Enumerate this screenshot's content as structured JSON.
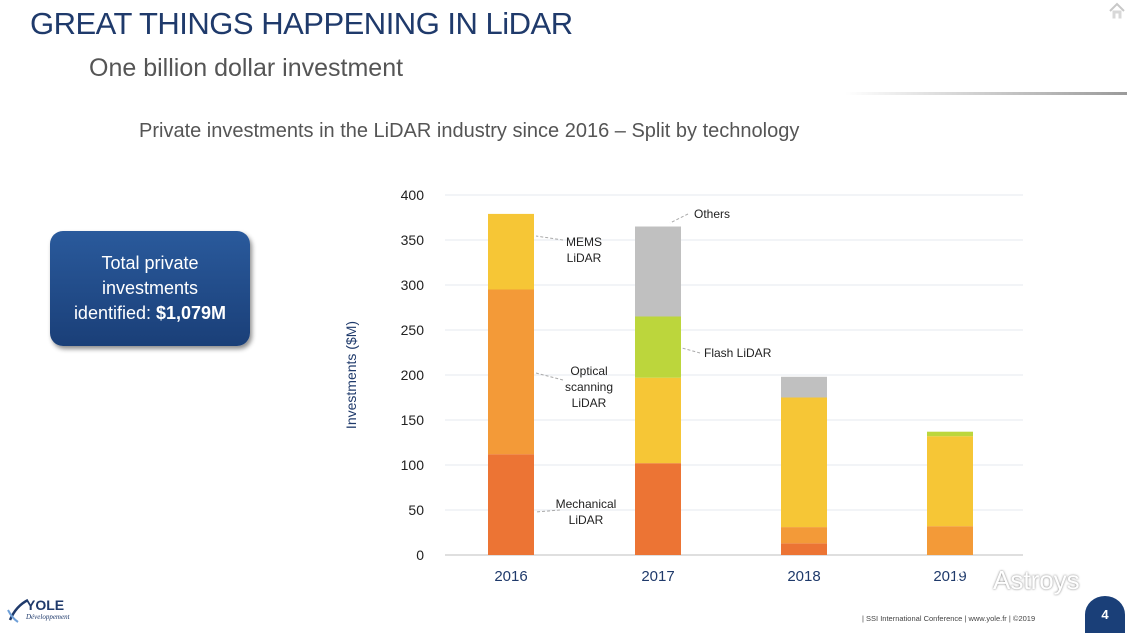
{
  "slide": {
    "title": "GREAT THINGS HAPPENING IN LiDAR",
    "subtitle": "One billion dollar investment",
    "chart_title": "Private investments in the LiDAR industry since 2016 – Split by technology",
    "callout": {
      "line1": "Total private",
      "line2": "investments",
      "line3_prefix": "identified: ",
      "line3_value": "$1,079M"
    },
    "footer": "| SSI International Conference | www.yole.fr | ©2019",
    "page_number": "4",
    "logo": {
      "name": "YOLE",
      "tagline": "Développement"
    },
    "watermark": "Astroys"
  },
  "colors": {
    "title": "#1f3a6b",
    "mechanical": "#ec7434",
    "optical": "#f39a38",
    "mems": "#f6c636",
    "flash": "#bcd63c",
    "others": "#c0c0c0"
  },
  "chart_data": {
    "type": "bar",
    "stacked": true,
    "categories": [
      "2016",
      "2017",
      "2018",
      "2019"
    ],
    "ylabel": "Investments ($M)",
    "ylim": [
      0,
      400
    ],
    "yticks": [
      0,
      50,
      100,
      150,
      200,
      250,
      300,
      350,
      400
    ],
    "grid": true,
    "series": [
      {
        "name": "Mechanical LiDAR",
        "color": "#ec7434",
        "values": [
          112,
          102,
          13,
          0
        ]
      },
      {
        "name": "Optical scanning LiDAR",
        "color": "#f39a38",
        "values": [
          183,
          0,
          18,
          32
        ]
      },
      {
        "name": "MEMS LiDAR",
        "color": "#f6c636",
        "values": [
          84,
          95,
          144,
          100
        ]
      },
      {
        "name": "Flash LiDAR",
        "color": "#bcd63c",
        "values": [
          0,
          68,
          0,
          5
        ]
      },
      {
        "name": "Others",
        "color": "#c0c0c0",
        "values": [
          0,
          100,
          23,
          0
        ]
      }
    ],
    "annotations": [
      {
        "lines": [
          "MEMS",
          "LiDAR"
        ],
        "series": "MEMS LiDAR"
      },
      {
        "lines": [
          "Optical",
          "scanning",
          "LiDAR"
        ],
        "series": "Optical scanning LiDAR"
      },
      {
        "lines": [
          "Mechanical",
          "LiDAR"
        ],
        "series": "Mechanical LiDAR"
      },
      {
        "lines": [
          "Others"
        ],
        "series": "Others"
      },
      {
        "lines": [
          "Flash LiDAR"
        ],
        "series": "Flash LiDAR"
      }
    ]
  }
}
